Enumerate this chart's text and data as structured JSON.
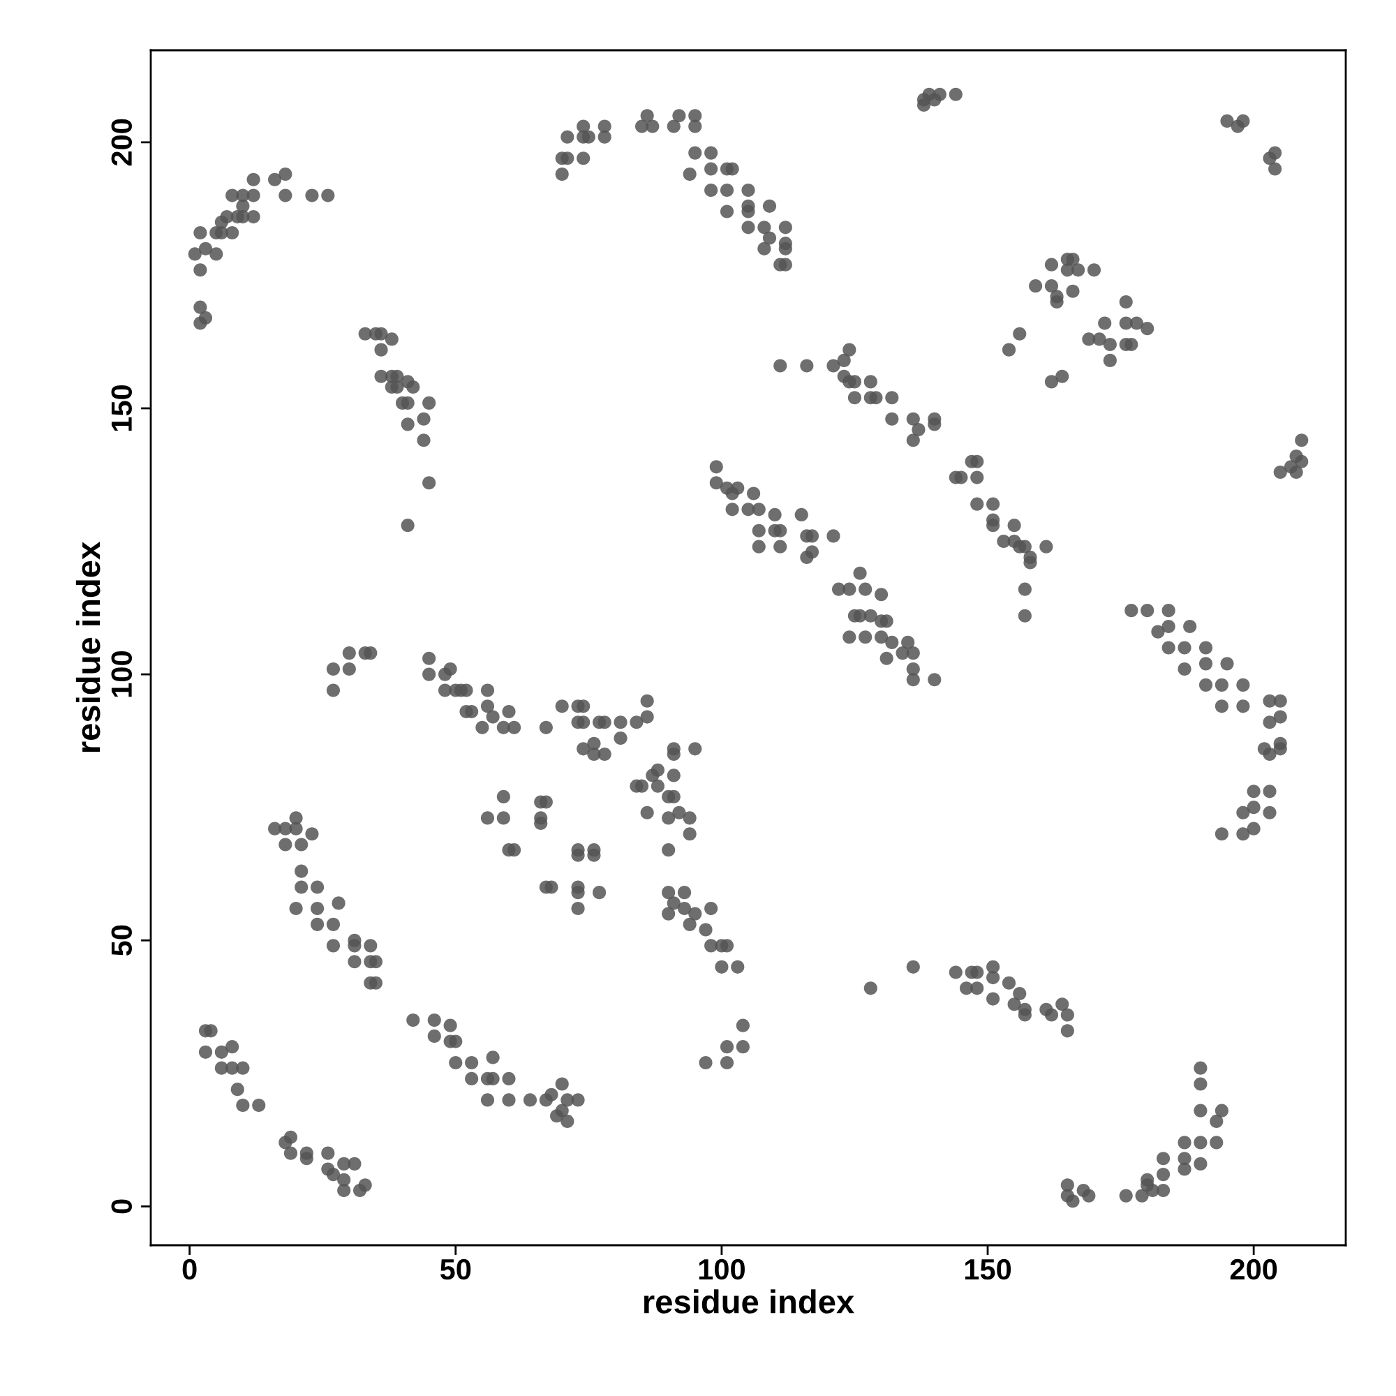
{
  "chart_data": {
    "type": "scatter",
    "xlabel": "residue index",
    "ylabel": "residue index",
    "xlim": [
      -7.3,
      217.3
    ],
    "ylim": [
      -7.3,
      217.3
    ],
    "xticks": [
      0,
      50,
      100,
      150,
      200
    ],
    "yticks": [
      0,
      50,
      100,
      150,
      200
    ],
    "grid": false,
    "marker": "circle",
    "series": [
      {
        "color": "#555555",
        "x": [
          2,
          2,
          3,
          2,
          1,
          3,
          5,
          2,
          5,
          6,
          8,
          7,
          9,
          10,
          12,
          8,
          10,
          12,
          12,
          16,
          18,
          18,
          23,
          26,
          6,
          10,
          70,
          70,
          71,
          71,
          74,
          74,
          75,
          74,
          78,
          78,
          85,
          86,
          87,
          91,
          92,
          95,
          95,
          94,
          95,
          98,
          98,
          98,
          101,
          101,
          102,
          101,
          105,
          105,
          105,
          105,
          108,
          109,
          108,
          109,
          112,
          112,
          112,
          111,
          112,
          138,
          139,
          141,
          144,
          138,
          140,
          195,
          197,
          198,
          203,
          204,
          204,
          154,
          156,
          159,
          162,
          164,
          162,
          162,
          163,
          163,
          165,
          165,
          166,
          167,
          170,
          166,
          169,
          171,
          172,
          173,
          173,
          176,
          176,
          176,
          180,
          177,
          178,
          205,
          208,
          209,
          209,
          208,
          207,
          33,
          35,
          36,
          38,
          36,
          36,
          38,
          38,
          39,
          41,
          42,
          40,
          41,
          41,
          44,
          45,
          44,
          45,
          41,
          39,
          111,
          116,
          121,
          123,
          124,
          123,
          124,
          125,
          125,
          128,
          128,
          129,
          132,
          132,
          136,
          137,
          136,
          140,
          140,
          99,
          99,
          101,
          103,
          102,
          102,
          106,
          105,
          107,
          107,
          107,
          110,
          110,
          111,
          111,
          115,
          116,
          117,
          117,
          116,
          121,
          144,
          145,
          147,
          148,
          148,
          148,
          151,
          151,
          151,
          155,
          153,
          155,
          156,
          157,
          158,
          161,
          158,
          157,
          157,
          122,
          124,
          126,
          127,
          125,
          124,
          126,
          128,
          127,
          130,
          130,
          131,
          130,
          132,
          131,
          135,
          136,
          136,
          140,
          136,
          134,
          177,
          180,
          182,
          184,
          184,
          184,
          187,
          188,
          187,
          191,
          191,
          191,
          194,
          195,
          194,
          198,
          198,
          203,
          205,
          203,
          205,
          202,
          205,
          205,
          203,
          200,
          203,
          200,
          203,
          198,
          198,
          194,
          200,
          45,
          45,
          48,
          49,
          48,
          50,
          51,
          52,
          52,
          53,
          56,
          56,
          55,
          57,
          60,
          59,
          61,
          67,
          70,
          73,
          74,
          73,
          74,
          74,
          77,
          78,
          76,
          76,
          78,
          81,
          81,
          84,
          86,
          86,
          91,
          91,
          95,
          84,
          85,
          87,
          88,
          88,
          91,
          91,
          90,
          90,
          92,
          94,
          94,
          86,
          90,
          59,
          59,
          56,
          60,
          61,
          66,
          67,
          66,
          66,
          73,
          73,
          76,
          76,
          67,
          68,
          73,
          73,
          73,
          77,
          90,
          90,
          91,
          93,
          93,
          94,
          95,
          97,
          98,
          98,
          100,
          101,
          100,
          103,
          104,
          104,
          101,
          101,
          97,
          27,
          30,
          30,
          33,
          34,
          27,
          16,
          18,
          20,
          20,
          18,
          21,
          23,
          21,
          21,
          24,
          20,
          24,
          24,
          27,
          28,
          27,
          31,
          31,
          31,
          34,
          34,
          35,
          34,
          35,
          42,
          46,
          46,
          49,
          49,
          50,
          50,
          53,
          53,
          57,
          56,
          57,
          56,
          60,
          60,
          64,
          67,
          68,
          70,
          70,
          71,
          73,
          69,
          71,
          3,
          4,
          3,
          6,
          8,
          6,
          8,
          10,
          9,
          10,
          13,
          18,
          19,
          19,
          22,
          22,
          26,
          26,
          27,
          29,
          29,
          29,
          31,
          32,
          33,
          128,
          136,
          144,
          147,
          148,
          146,
          148,
          151,
          151,
          151,
          154,
          155,
          156,
          157,
          157,
          161,
          162,
          164,
          165,
          165,
          165,
          165,
          166,
          168,
          169,
          176,
          179,
          180,
          180,
          181,
          183,
          183,
          183,
          187,
          187,
          187,
          190,
          190,
          190,
          190,
          190,
          193,
          194,
          193
        ],
        "values": [
          166,
          169,
          167,
          176,
          179,
          180,
          179,
          183,
          183,
          183,
          183,
          186,
          186,
          186,
          186,
          190,
          190,
          190,
          193,
          193,
          194,
          190,
          190,
          190,
          185,
          188,
          194,
          197,
          197,
          201,
          203,
          201,
          201,
          197,
          203,
          201,
          203,
          205,
          203,
          203,
          205,
          205,
          203,
          194,
          198,
          198,
          195,
          191,
          195,
          191,
          195,
          187,
          191,
          188,
          187,
          184,
          184,
          188,
          180,
          182,
          184,
          181,
          177,
          177,
          180,
          208,
          209,
          209,
          209,
          207,
          208,
          204,
          203,
          204,
          197,
          198,
          195,
          161,
          164,
          173,
          155,
          156,
          177,
          173,
          171,
          170,
          178,
          176,
          172,
          176,
          176,
          178,
          163,
          163,
          166,
          162,
          159,
          166,
          170,
          162,
          165,
          162,
          166,
          138,
          138,
          140,
          144,
          141,
          139,
          164,
          164,
          164,
          163,
          161,
          156,
          156,
          154,
          156,
          155,
          154,
          151,
          151,
          147,
          148,
          151,
          144,
          136,
          128,
          154,
          158,
          158,
          158,
          159,
          161,
          156,
          155,
          155,
          152,
          155,
          152,
          152,
          152,
          148,
          148,
          146,
          144,
          148,
          147,
          139,
          136,
          135,
          135,
          134,
          131,
          134,
          131,
          131,
          127,
          124,
          130,
          127,
          127,
          124,
          130,
          126,
          126,
          123,
          122,
          126,
          137,
          137,
          140,
          140,
          137,
          132,
          132,
          128,
          129,
          128,
          125,
          125,
          124,
          124,
          122,
          124,
          121,
          116,
          111,
          116,
          116,
          119,
          116,
          111,
          107,
          111,
          111,
          107,
          115,
          110,
          110,
          107,
          106,
          103,
          106,
          104,
          99,
          99,
          101,
          104,
          112,
          112,
          108,
          112,
          109,
          105,
          105,
          109,
          101,
          105,
          102,
          98,
          98,
          102,
          94,
          98,
          94,
          95,
          95,
          91,
          92,
          86,
          86,
          87,
          85,
          78,
          78,
          75,
          74,
          74,
          70,
          70,
          71,
          103,
          100,
          100,
          101,
          97,
          97,
          97,
          97,
          93,
          93,
          97,
          94,
          90,
          92,
          93,
          90,
          90,
          90,
          94,
          94,
          94,
          91,
          91,
          86,
          91,
          91,
          87,
          85,
          85,
          88,
          91,
          91,
          95,
          92,
          86,
          85,
          86,
          79,
          79,
          81,
          82,
          79,
          77,
          81,
          77,
          73,
          74,
          73,
          70,
          74,
          67,
          77,
          73,
          73,
          67,
          67,
          76,
          76,
          73,
          72,
          67,
          66,
          67,
          66,
          60,
          60,
          60,
          59,
          56,
          59,
          59,
          55,
          57,
          59,
          56,
          53,
          55,
          52,
          56,
          49,
          49,
          49,
          45,
          45,
          34,
          30,
          30,
          27,
          27,
          101,
          104,
          101,
          104,
          104,
          97,
          71,
          71,
          71,
          73,
          68,
          68,
          70,
          63,
          60,
          60,
          56,
          56,
          53,
          53,
          57,
          49,
          49,
          50,
          46,
          49,
          46,
          46,
          42,
          42,
          35,
          35,
          32,
          34,
          31,
          27,
          31,
          27,
          24,
          28,
          24,
          24,
          20,
          24,
          20,
          20,
          20,
          21,
          23,
          18,
          20,
          20,
          17,
          16,
          33,
          33,
          29,
          29,
          30,
          26,
          26,
          26,
          22,
          19,
          19,
          12,
          13,
          10,
          10,
          9,
          10,
          7,
          6,
          8,
          5,
          3,
          8,
          3,
          4,
          41,
          45,
          44,
          44,
          44,
          41,
          41,
          45,
          43,
          39,
          42,
          38,
          40,
          37,
          36,
          37,
          36,
          38,
          36,
          33,
          4,
          2,
          1,
          3,
          2,
          2,
          2,
          4,
          5,
          3,
          9,
          6,
          3,
          12,
          9,
          7,
          12,
          8,
          18,
          23,
          26,
          16,
          18,
          12
        ]
      }
    ]
  }
}
